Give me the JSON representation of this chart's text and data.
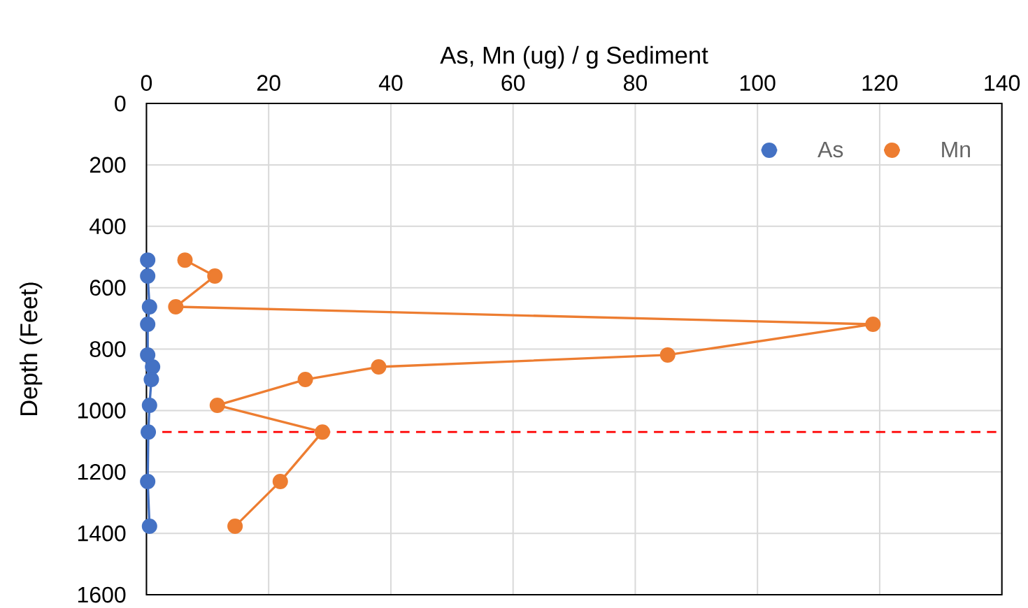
{
  "chart_data": {
    "type": "line",
    "xlabel": "As, Mn (ug) / g Sediment",
    "ylabel": "Depth (Feet)",
    "xlim": [
      0,
      140
    ],
    "xticks": [
      0,
      20,
      40,
      60,
      80,
      100,
      120,
      140
    ],
    "ylim": [
      1600,
      0
    ],
    "yticks": [
      0,
      200,
      400,
      600,
      800,
      1000,
      1200,
      1400,
      1600
    ],
    "grid": true,
    "legend": "top right",
    "marker": "circle",
    "line_style": "solid",
    "series": [
      {
        "name": "As",
        "color": "#4472c4",
        "x": [
          0.2,
          0.2,
          0.5,
          0.2,
          0.2,
          1.0,
          0.8,
          0.5,
          0.3,
          0.2,
          0.5
        ],
        "values": [
          510,
          562,
          662,
          719,
          819,
          858,
          899,
          983,
          1070,
          1231,
          1377
        ]
      },
      {
        "name": "Mn",
        "color": "#ed7d31",
        "x": [
          6.3,
          11.2,
          4.8,
          118.9,
          85.3,
          38.0,
          26.0,
          11.6,
          28.8,
          21.9,
          14.5
        ],
        "values": [
          510,
          562,
          662,
          719,
          819,
          858,
          899,
          983,
          1070,
          1231,
          1377
        ]
      }
    ],
    "ref_lines": [
      {
        "axis": "y",
        "value": 1070,
        "color": "#ff0000",
        "line_style": "dashed"
      }
    ]
  }
}
